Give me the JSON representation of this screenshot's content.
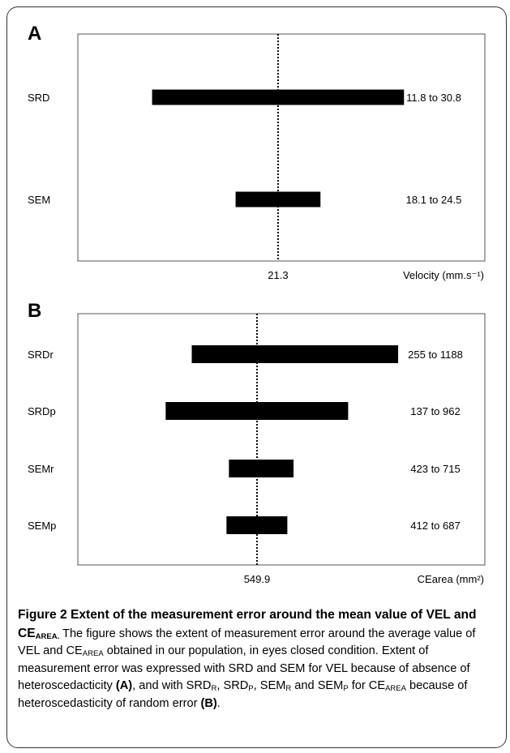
{
  "panels": [
    {
      "letter": "A",
      "xlabel": "Velocity (mm.s⁻¹)",
      "center_label": "21.3"
    },
    {
      "letter": "B",
      "xlabel": "CEarea (mm²)",
      "center_label": "549.9"
    }
  ],
  "caption": {
    "title": "Figure 2 Extent of the measurement error around the mean value of VEL and CE",
    "title_sub": "AREA.",
    "t1": " The figure shows the extent of measurement error around the average value of VEL and CE",
    "s1": "AREA",
    "t2": " obtained in our population, in eyes closed condition. Extent of measurement error was expressed with SRD and SEM for VEL because of absence of heteroscedacticity ",
    "b1": "(A)",
    "t3": ", and with SRD",
    "s2": "R",
    "t4": ", SRD",
    "s3": "P",
    "t5": ", SEM",
    "s4": "R",
    "t6": " and SEM",
    "s5": "P",
    "t7": " for CE",
    "s6": "AREA",
    "t8": " because of heteroscedasticity of random error ",
    "b2": "(B)",
    "t9": "."
  },
  "chart_data": [
    {
      "type": "bar",
      "orientation": "horizontal-range",
      "xlabel": "Velocity (mm.s⁻¹)",
      "center_value": 21.3,
      "center_line": "dotted",
      "xlim": [
        6.2,
        36.9
      ],
      "categories": [
        "SRD",
        "SEM"
      ],
      "series": [
        {
          "values": [
            [
              11.8,
              30.8
            ],
            [
              18.1,
              24.5
            ]
          ]
        }
      ],
      "range_labels": [
        "11.8 to 30.8",
        "18.1 to 24.5"
      ]
    },
    {
      "type": "bar",
      "orientation": "horizontal-range",
      "xlabel": "CEarea (mm²)",
      "center_value": 549.9,
      "center_line": "dotted",
      "xlim": [
        -260,
        1580
      ],
      "categories": [
        "SRDr",
        "SRDp",
        "SEMr",
        "SEMp"
      ],
      "series": [
        {
          "values": [
            [
              255,
              1188
            ],
            [
              137,
              962
            ],
            [
              423,
              715
            ],
            [
              412,
              687
            ]
          ]
        }
      ],
      "range_labels": [
        "255 to 1188",
        "137 to 962",
        "423 to 715",
        "412 to 687"
      ]
    }
  ]
}
